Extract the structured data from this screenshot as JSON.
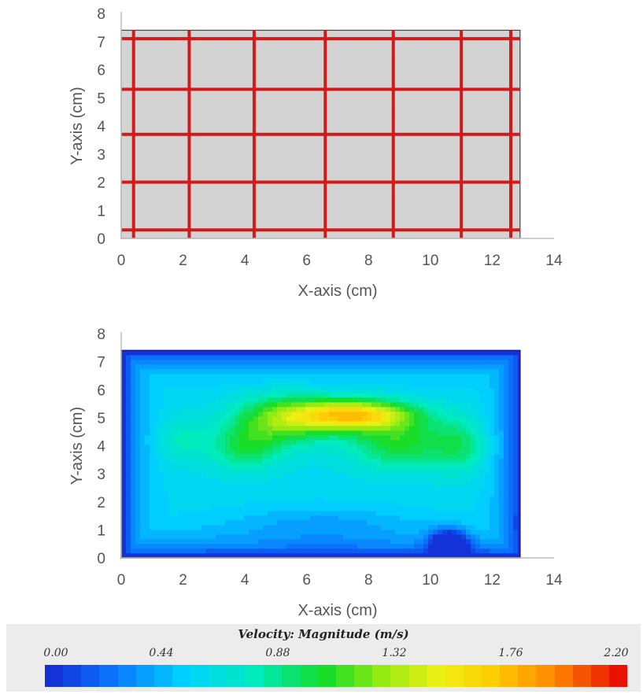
{
  "chart_data": [
    {
      "type": "mesh",
      "xlabel": "X-axis (cm)",
      "ylabel": "Y-axis (cm)",
      "xlim": [
        0,
        14
      ],
      "ylim": [
        0,
        8
      ],
      "xticks": [
        "0",
        "2",
        "4",
        "6",
        "8",
        "10",
        "12",
        "14"
      ],
      "yticks": [
        "0",
        "1",
        "2",
        "3",
        "4",
        "5",
        "6",
        "7",
        "8"
      ],
      "domain": {
        "x": [
          0,
          12.9
        ],
        "y": [
          0,
          7.4
        ]
      },
      "vertical_lines_x": [
        0.4,
        2.2,
        4.3,
        6.6,
        8.8,
        11.0,
        12.6
      ],
      "horizontal_lines_y": [
        0.3,
        2.0,
        3.7,
        5.3,
        7.1
      ],
      "fill_color": "#d3d3d3",
      "line_color": "#d11a1a"
    },
    {
      "type": "heatmap",
      "xlabel": "X-axis (cm)",
      "ylabel": "Y-axis (cm)",
      "xlim": [
        0,
        14
      ],
      "ylim": [
        0,
        8
      ],
      "xticks": [
        "0",
        "2",
        "4",
        "6",
        "8",
        "10",
        "12",
        "14"
      ],
      "yticks": [
        "0",
        "1",
        "2",
        "3",
        "4",
        "5",
        "6",
        "7",
        "8"
      ],
      "domain": {
        "x": [
          0,
          12.9
        ],
        "y": [
          0,
          7.4
        ]
      },
      "value_range": [
        0,
        2.2
      ],
      "hotspots": [
        {
          "x": 7.5,
          "y": 5.1,
          "sx": 1.9,
          "sy": 0.55,
          "v": 1.05
        },
        {
          "x": 5.2,
          "y": 4.9,
          "sx": 1.6,
          "sy": 0.9,
          "v": 0.55
        },
        {
          "x": 9.0,
          "y": 4.1,
          "sx": 1.6,
          "sy": 0.9,
          "v": 0.45
        },
        {
          "x": 4.0,
          "y": 3.9,
          "sx": 1.1,
          "sy": 0.8,
          "v": 0.35
        },
        {
          "x": 11.0,
          "y": 4.0,
          "sx": 0.9,
          "sy": 1.0,
          "v": 0.3
        },
        {
          "x": 2.0,
          "y": 4.2,
          "sx": 0.8,
          "sy": 0.8,
          "v": 0.2
        },
        {
          "x": 10.6,
          "y": 0.45,
          "sx": 0.55,
          "sy": 0.5,
          "v": -0.95
        },
        {
          "x": 6.5,
          "y": 1.2,
          "sx": 3.0,
          "sy": 0.7,
          "v": -0.15
        }
      ],
      "legend": {
        "title": "Velocity: Magnitude (m/s)",
        "ticks": [
          "0.00",
          "0.44",
          "0.88",
          "1.32",
          "1.76",
          "2.20"
        ],
        "min": 0,
        "max": 2.2,
        "bands": 32
      }
    }
  ]
}
